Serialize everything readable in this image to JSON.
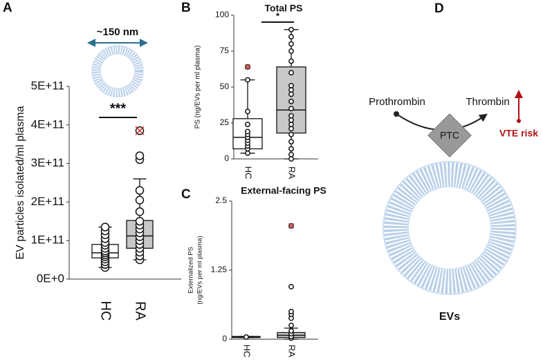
{
  "chart_data": [
    {
      "type": "box",
      "panel_label": "A",
      "ylabel": "EV particles isolated/ml plasma",
      "scale_label": "~150 nm",
      "significance": "***",
      "categories": [
        "HC",
        "RA"
      ],
      "colors": [
        "#ffffff",
        "#c8c8c8"
      ],
      "ylim": [
        0,
        500000000000
      ],
      "yticks": [
        {
          "value": 0,
          "label": "0E+0"
        },
        {
          "value": 100000000000,
          "label": "1E+11"
        },
        {
          "value": 200000000000,
          "label": "2E+11"
        },
        {
          "value": 300000000000,
          "label": "3E+11"
        },
        {
          "value": 400000000000,
          "label": "4E+11"
        },
        {
          "value": 500000000000,
          "label": "5E+11"
        }
      ],
      "boxes": [
        {
          "whisker_low": 30000000000,
          "q1": 55000000000,
          "median": 68000000000,
          "q3": 90000000000,
          "whisker_high": 135000000000,
          "points": [
            30000000000,
            38000000000,
            45000000000,
            52000000000,
            58000000000,
            63000000000,
            68000000000,
            73000000000,
            80000000000,
            88000000000,
            95000000000,
            105000000000,
            115000000000,
            125000000000,
            135000000000
          ],
          "outliers": []
        },
        {
          "whisker_low": 50000000000,
          "q1": 80000000000,
          "median": 112000000000,
          "q3": 152000000000,
          "whisker_high": 260000000000,
          "points": [
            50000000000,
            60000000000,
            70000000000,
            80000000000,
            90000000000,
            100000000000,
            110000000000,
            120000000000,
            130000000000,
            140000000000,
            150000000000,
            175000000000,
            205000000000,
            230000000000,
            310000000000,
            320000000000
          ],
          "outliers": [
            385000000000
          ]
        }
      ]
    },
    {
      "type": "box",
      "panel_label": "B",
      "title": "Total PS",
      "ylabel": "PS (ng/EVs per ml plasma)",
      "significance": "*",
      "categories": [
        "HC",
        "RA"
      ],
      "colors": [
        "#ffffff",
        "#c8c8c8"
      ],
      "ylim": [
        0,
        100
      ],
      "yticks": [
        0,
        25,
        50,
        75,
        100
      ],
      "boxes": [
        {
          "whisker_low": 4,
          "q1": 7,
          "median": 15,
          "q3": 28,
          "whisker_high": 55,
          "points": [
            4,
            7,
            9,
            11,
            13,
            15,
            17,
            19,
            24,
            33,
            55
          ],
          "outliers": [
            64
          ]
        },
        {
          "whisker_low": 0,
          "q1": 18,
          "median": 34,
          "q3": 64,
          "whisker_high": 90,
          "points": [
            0,
            3,
            7,
            12,
            17,
            21,
            24,
            27,
            30,
            35,
            40,
            45,
            48,
            51,
            60,
            68,
            75,
            80,
            85,
            90
          ],
          "outliers": []
        }
      ]
    },
    {
      "type": "box",
      "panel_label": "C",
      "title": "External-facing PS",
      "ylabel": [
        "Externalized PS",
        "(ng/EVs per ml plasma)"
      ],
      "categories": [
        "HC",
        "RA"
      ],
      "colors": [
        "#ffffff",
        "#c8c8c8"
      ],
      "ylim": [
        0,
        2.5
      ],
      "yticks": [
        0,
        1.25,
        2.5
      ],
      "boxes": [
        {
          "whisker_low": 0.03,
          "q1": 0.03,
          "median": 0.04,
          "q3": 0.05,
          "whisker_high": 0.05,
          "points": [
            0.04
          ],
          "outliers": []
        },
        {
          "whisker_low": 0,
          "q1": 0.03,
          "median": 0.07,
          "q3": 0.12,
          "whisker_high": 0.2,
          "points": [
            0.02,
            0.05,
            0.1,
            0.15,
            0.25,
            0.38,
            0.45,
            0.5,
            0.95
          ],
          "outliers": [
            2.05
          ]
        }
      ]
    }
  ],
  "diagram": {
    "panel_label": "D",
    "substrate": "Prothrombin",
    "product": "Thrombin",
    "complex": "PTC",
    "risk": "VTE risk",
    "vesicle": "EVs"
  }
}
